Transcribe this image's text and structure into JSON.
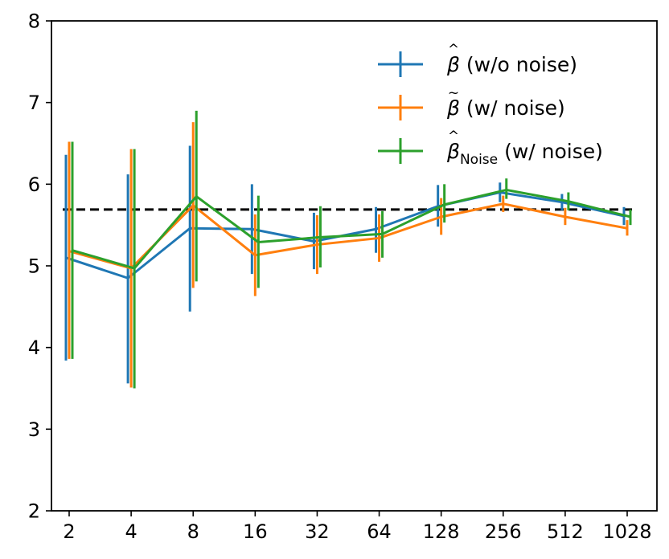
{
  "chart_data": {
    "type": "line",
    "title": "",
    "xlabel": "",
    "ylabel": "",
    "categories": [
      "2",
      "4",
      "8",
      "16",
      "32",
      "64",
      "128",
      "256",
      "512",
      "1028"
    ],
    "ylim": [
      2,
      8
    ],
    "yticks": [
      "2",
      "3",
      "4",
      "5",
      "6",
      "7",
      "8"
    ],
    "grid": false,
    "legend_position": "top-right",
    "reference_line": {
      "value": 5.69,
      "style": "dashed",
      "color": "#000000"
    },
    "series": [
      {
        "name": "β̂ (w/o noise)",
        "legend": {
          "symbol": "β",
          "accent": "^",
          "subscript": "",
          "suffix": " (w/o noise)"
        },
        "color": "#1f77b4",
        "values": [
          5.1,
          4.85,
          5.46,
          5.45,
          5.3,
          5.45,
          5.73,
          5.9,
          5.78,
          5.61
        ],
        "err_low": [
          3.84,
          3.56,
          4.44,
          4.9,
          4.96,
          5.16,
          5.48,
          5.78,
          5.68,
          5.5
        ],
        "err_high": [
          6.36,
          6.12,
          6.47,
          6.0,
          5.65,
          5.72,
          5.99,
          6.02,
          5.88,
          5.72
        ]
      },
      {
        "name": "β̃ (w/ noise)",
        "legend": {
          "symbol": "β",
          "accent": "~",
          "subscript": "",
          "suffix": " (w/ noise)"
        },
        "color": "#ff7f0e",
        "values": [
          5.18,
          4.97,
          5.74,
          5.13,
          5.26,
          5.34,
          5.6,
          5.76,
          5.6,
          5.46
        ],
        "err_low": [
          3.86,
          3.51,
          4.73,
          4.63,
          4.9,
          5.05,
          5.38,
          5.66,
          5.5,
          5.37
        ],
        "err_high": [
          6.52,
          6.43,
          6.76,
          5.63,
          5.62,
          5.63,
          5.83,
          5.86,
          5.71,
          5.56
        ]
      },
      {
        "name": "β̂Noise (w/ noise)",
        "legend": {
          "symbol": "β",
          "accent": "^",
          "subscript": "Noise",
          "suffix": " (w/ noise)"
        },
        "color": "#2ca02c",
        "values": [
          5.19,
          4.97,
          5.85,
          5.29,
          5.35,
          5.39,
          5.75,
          5.93,
          5.79,
          5.6
        ],
        "err_low": [
          3.86,
          3.5,
          4.81,
          4.73,
          4.98,
          5.1,
          5.53,
          5.82,
          5.68,
          5.5
        ],
        "err_high": [
          6.52,
          6.43,
          6.9,
          5.86,
          5.73,
          5.67,
          6.0,
          6.07,
          5.9,
          5.69
        ]
      }
    ]
  }
}
